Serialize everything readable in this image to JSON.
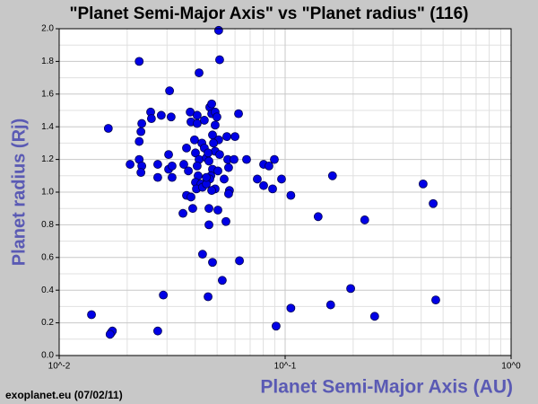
{
  "chart_data": {
    "type": "scatter",
    "title": "\"Planet Semi-Major Axis\"  vs \"Planet radius\" (116)",
    "x_label": "Planet Semi-Major Axis (AU)",
    "y_label": "Planet radius (Rj)",
    "source": "exoplanet.eu (07/02/11)",
    "color": "#0000e6",
    "x_log": true,
    "grid": true,
    "xlim": [
      0.01,
      1
    ],
    "ylim": [
      0,
      2
    ],
    "xticks": [
      {
        "value": 0.01,
        "label": "10^-2"
      },
      {
        "value": 0.1,
        "label": "10^-1"
      },
      {
        "value": 1,
        "label": "10^0"
      }
    ],
    "yticks": [
      {
        "value": 0,
        "label": "0.0"
      },
      0.2,
      0.4,
      0.6,
      0.8,
      {
        "value": 1,
        "label": "1.0"
      },
      1.2,
      1.4,
      1.6,
      1.8,
      {
        "value": 2,
        "label": "2.0"
      }
    ],
    "x": [
      0.0139,
      0.017,
      0.0172,
      0.0168,
      0.0165,
      0.0226,
      0.0232,
      0.023,
      0.0226,
      0.0254,
      0.0256,
      0.0206,
      0.0226,
      0.0232,
      0.023,
      0.0283,
      0.0308,
      0.0313,
      0.0273,
      0.0273,
      0.0305,
      0.0305,
      0.0316,
      0.0316,
      0.0273,
      0.0289,
      0.0353,
      0.0366,
      0.0383,
      0.039,
      0.0356,
      0.0366,
      0.0373,
      0.038,
      0.0383,
      0.0408,
      0.0408,
      0.0416,
      0.0397,
      0.0401,
      0.0416,
      0.0408,
      0.0412,
      0.0401,
      0.0424,
      0.0405,
      0.0431,
      0.0428,
      0.0439,
      0.0448,
      0.0439,
      0.0464,
      0.0473,
      0.0473,
      0.049,
      0.0499,
      0.049,
      0.0477,
      0.0508,
      0.0513,
      0.0508,
      0.0482,
      0.049,
      0.0513,
      0.0456,
      0.046,
      0.0477,
      0.0504,
      0.0469,
      0.0464,
      0.0448,
      0.049,
      0.0473,
      0.0448,
      0.0431,
      0.0477,
      0.0456,
      0.046,
      0.0504,
      0.046,
      0.0527,
      0.0552,
      0.0557,
      0.0562,
      0.0537,
      0.0567,
      0.0562,
      0.0547,
      0.06,
      0.0622,
      0.0594,
      0.0675,
      0.0628,
      0.0753,
      0.0803,
      0.0848,
      0.0896,
      0.0803,
      0.088,
      0.0964,
      0.106,
      0.0912,
      0.106,
      0.14,
      0.162,
      0.159,
      0.195,
      0.225,
      0.249,
      0.408,
      0.452,
      0.464
    ],
    "values": [
      0.25,
      0.14,
      0.15,
      0.13,
      1.39,
      1.8,
      1.42,
      1.37,
      1.31,
      1.49,
      1.45,
      1.17,
      1.2,
      1.16,
      1.12,
      1.47,
      1.62,
      1.46,
      1.17,
      1.09,
      1.23,
      1.14,
      1.16,
      1.09,
      0.15,
      0.37,
      0.87,
      0.98,
      0.97,
      0.9,
      1.17,
      1.27,
      1.13,
      1.49,
      1.43,
      1.47,
      1.42,
      1.73,
      1.32,
      1.24,
      1.2,
      1.16,
      1.1,
      1.06,
      1.05,
      1.02,
      1.03,
      1.3,
      1.27,
      1.21,
      1.44,
      1.52,
      1.48,
      1.54,
      1.49,
      1.46,
      1.41,
      1.35,
      1.99,
      1.81,
      1.32,
      1.3,
      1.25,
      1.23,
      1.24,
      1.19,
      1.14,
      1.13,
      1.1,
      1.08,
      1.05,
      1.02,
      1.01,
      1.09,
      0.62,
      0.57,
      0.36,
      0.9,
      0.89,
      0.8,
      0.46,
      1.34,
      1.2,
      1.15,
      1.08,
      1.01,
      0.99,
      0.82,
      1.34,
      1.48,
      1.2,
      1.2,
      0.58,
      1.08,
      1.17,
      1.16,
      1.2,
      1.04,
      1.02,
      1.08,
      0.98,
      0.18,
      0.29,
      0.85,
      1.1,
      0.31,
      0.41,
      0.83,
      0.24,
      1.05,
      0.93,
      0.34
    ]
  }
}
